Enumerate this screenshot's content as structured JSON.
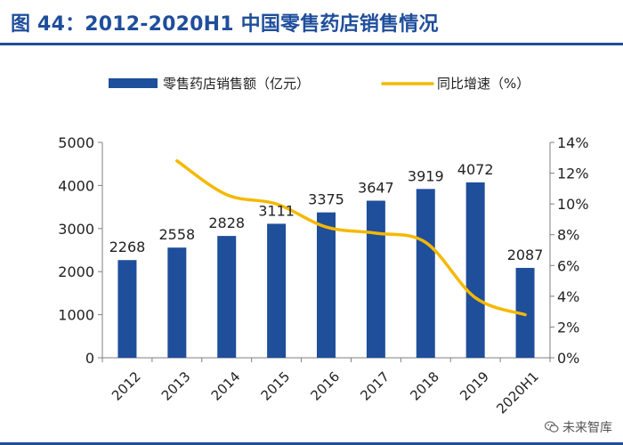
{
  "header": {
    "title": "图 44：2012-2020H1 中国零售药店销售情况"
  },
  "watermark": {
    "text": "未来智库",
    "icon": "wechat-icon"
  },
  "chart_data": {
    "type": "bar",
    "categories": [
      "2012",
      "2013",
      "2014",
      "2015",
      "2016",
      "2017",
      "2018",
      "2019",
      "2020H1"
    ],
    "series": [
      {
        "name": "零售药店销售额（亿元）",
        "type": "bar",
        "axis": "left",
        "color": "#1f4e9b",
        "values": [
          2268,
          2558,
          2828,
          3111,
          3375,
          3647,
          3919,
          4072,
          2087
        ]
      },
      {
        "name": "同比增速（%）",
        "type": "line",
        "axis": "right",
        "color": "#f5b800",
        "values": [
          null,
          12.8,
          10.6,
          10.0,
          8.5,
          8.1,
          7.5,
          3.9,
          2.8
        ]
      }
    ],
    "data_labels": [
      "2268",
      "2558",
      "2828",
      "3111",
      "3375",
      "3647",
      "3919",
      "4072",
      "2087"
    ],
    "y_left": {
      "lim": [
        0,
        5000
      ],
      "ticks": [
        "0",
        "1000",
        "2000",
        "3000",
        "4000",
        "5000"
      ]
    },
    "y_right": {
      "lim": [
        0,
        14
      ],
      "ticks": [
        "0%",
        "2%",
        "4%",
        "6%",
        "8%",
        "10%",
        "12%",
        "14%"
      ]
    },
    "legend": {
      "placement": "top",
      "items": [
        "零售药店销售额（亿元）",
        "同比增速（%）"
      ]
    },
    "grid": false
  }
}
